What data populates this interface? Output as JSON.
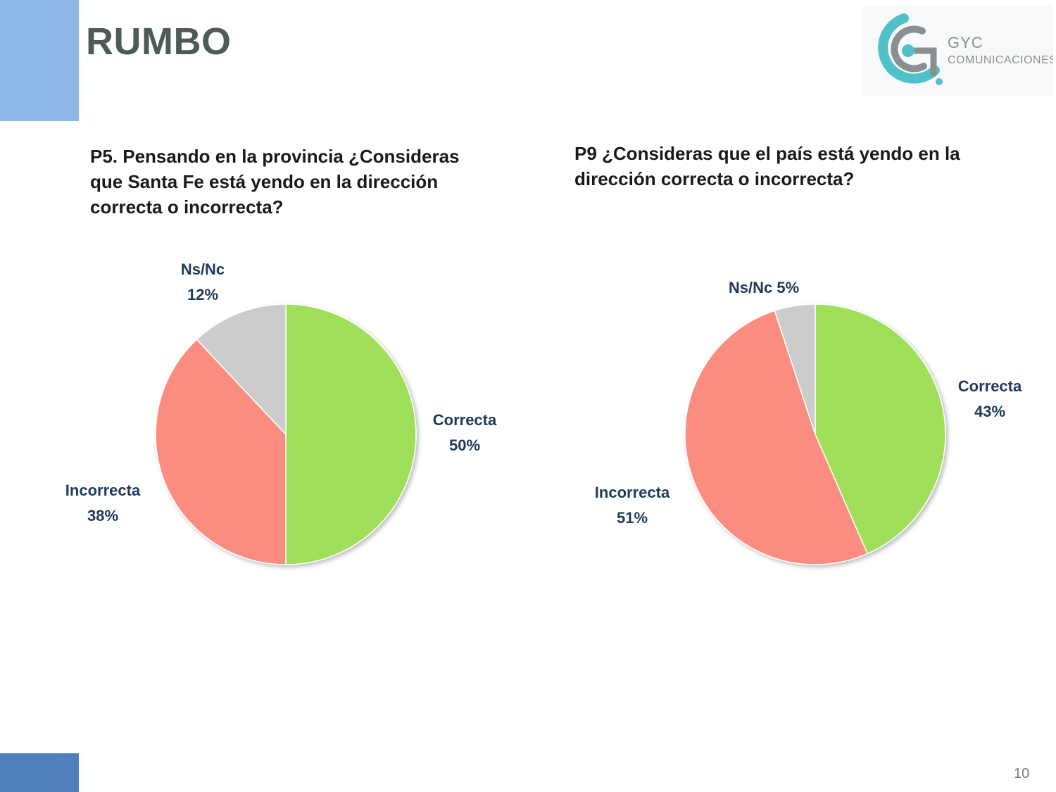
{
  "slide": {
    "title": "RUMBO",
    "page_number": "10",
    "logo": {
      "brand": "GYC",
      "subtitle": "COMUNICACIONES",
      "colors": {
        "teal": "#4fc1c7",
        "gray": "#8c8f92"
      }
    },
    "colors": {
      "accent_light": "#8db7e6",
      "accent_dark": "#4f7fbd",
      "label": "#1f3a5a"
    }
  },
  "chart_data": [
    {
      "type": "pie",
      "title": "P5. Pensando en la provincia ¿Consideras que Santa Fe está yendo en la dirección correcta o incorrecta?",
      "slices": [
        {
          "category": "Correcta",
          "value": 50,
          "label_lines": [
            "Correcta",
            "50%"
          ],
          "color": "#a0df5a"
        },
        {
          "category": "Incorrecta",
          "value": 38,
          "label_lines": [
            "Incorrecta",
            "38%"
          ],
          "color": "#fb8d80"
        },
        {
          "category": "Ns/Nc",
          "value": 12,
          "label_lines": [
            "Ns/Nc",
            "12%"
          ],
          "color": "#cccccc"
        }
      ]
    },
    {
      "type": "pie",
      "title": "P9 ¿Consideras que el país está yendo en la dirección correcta o incorrecta?",
      "slices": [
        {
          "category": "Correcta",
          "value": 43,
          "label_lines": [
            "Correcta",
            "43%"
          ],
          "color": "#a0df5a"
        },
        {
          "category": "Incorrecta",
          "value": 51,
          "label_lines": [
            "Incorrecta",
            "51%"
          ],
          "color": "#fb8d80"
        },
        {
          "category": "Ns/Nc",
          "value": 5,
          "label_lines": [
            "Ns/Nc 5%"
          ],
          "color": "#cccccc"
        }
      ]
    }
  ]
}
